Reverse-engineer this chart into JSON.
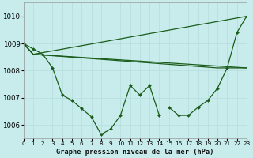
{
  "title": "Graphe pression niveau de la mer (hPa)",
  "background_color": "#c8ecec",
  "grid_color": "#b8dede",
  "line_color": "#1a5c1a",
  "xlim": [
    0,
    23
  ],
  "ylim": [
    1005.5,
    1010.5
  ],
  "yticks": [
    1006,
    1007,
    1008,
    1009,
    1010
  ],
  "xtick_labels": [
    "0",
    "1",
    "2",
    "3",
    "4",
    "5",
    "6",
    "7",
    "8",
    "9",
    "10",
    "11",
    "12",
    "13",
    "14",
    "15",
    "16",
    "17",
    "18",
    "19",
    "20",
    "21",
    "22",
    "23"
  ],
  "series": [
    {
      "x": [
        0,
        1,
        2,
        3,
        4,
        5,
        6,
        7,
        8,
        9,
        10,
        11,
        12,
        13,
        14
      ],
      "y": [
        1009.0,
        1008.8,
        1008.6,
        1008.1,
        1007.1,
        1006.9,
        1006.6,
        1006.3,
        1005.65,
        1005.85,
        1006.35,
        1007.45,
        1007.1,
        1007.45,
        1006.35
      ],
      "markers": true
    },
    {
      "x": [
        0,
        1,
        23
      ],
      "y": [
        1009.0,
        1008.6,
        1010.0
      ],
      "markers": false
    },
    {
      "x": [
        0,
        1,
        23
      ],
      "y": [
        1009.0,
        1008.6,
        1008.1
      ],
      "markers": false
    },
    {
      "x": [
        0,
        1,
        20,
        23
      ],
      "y": [
        1009.0,
        1008.6,
        1008.1,
        1008.1
      ],
      "markers": false
    },
    {
      "x": [
        15,
        16,
        17,
        18,
        19,
        20,
        21,
        22,
        23
      ],
      "y": [
        1006.65,
        1006.35,
        1006.35,
        1006.65,
        1006.9,
        1007.35,
        1008.1,
        1009.4,
        1010.0
      ],
      "markers": true
    }
  ]
}
